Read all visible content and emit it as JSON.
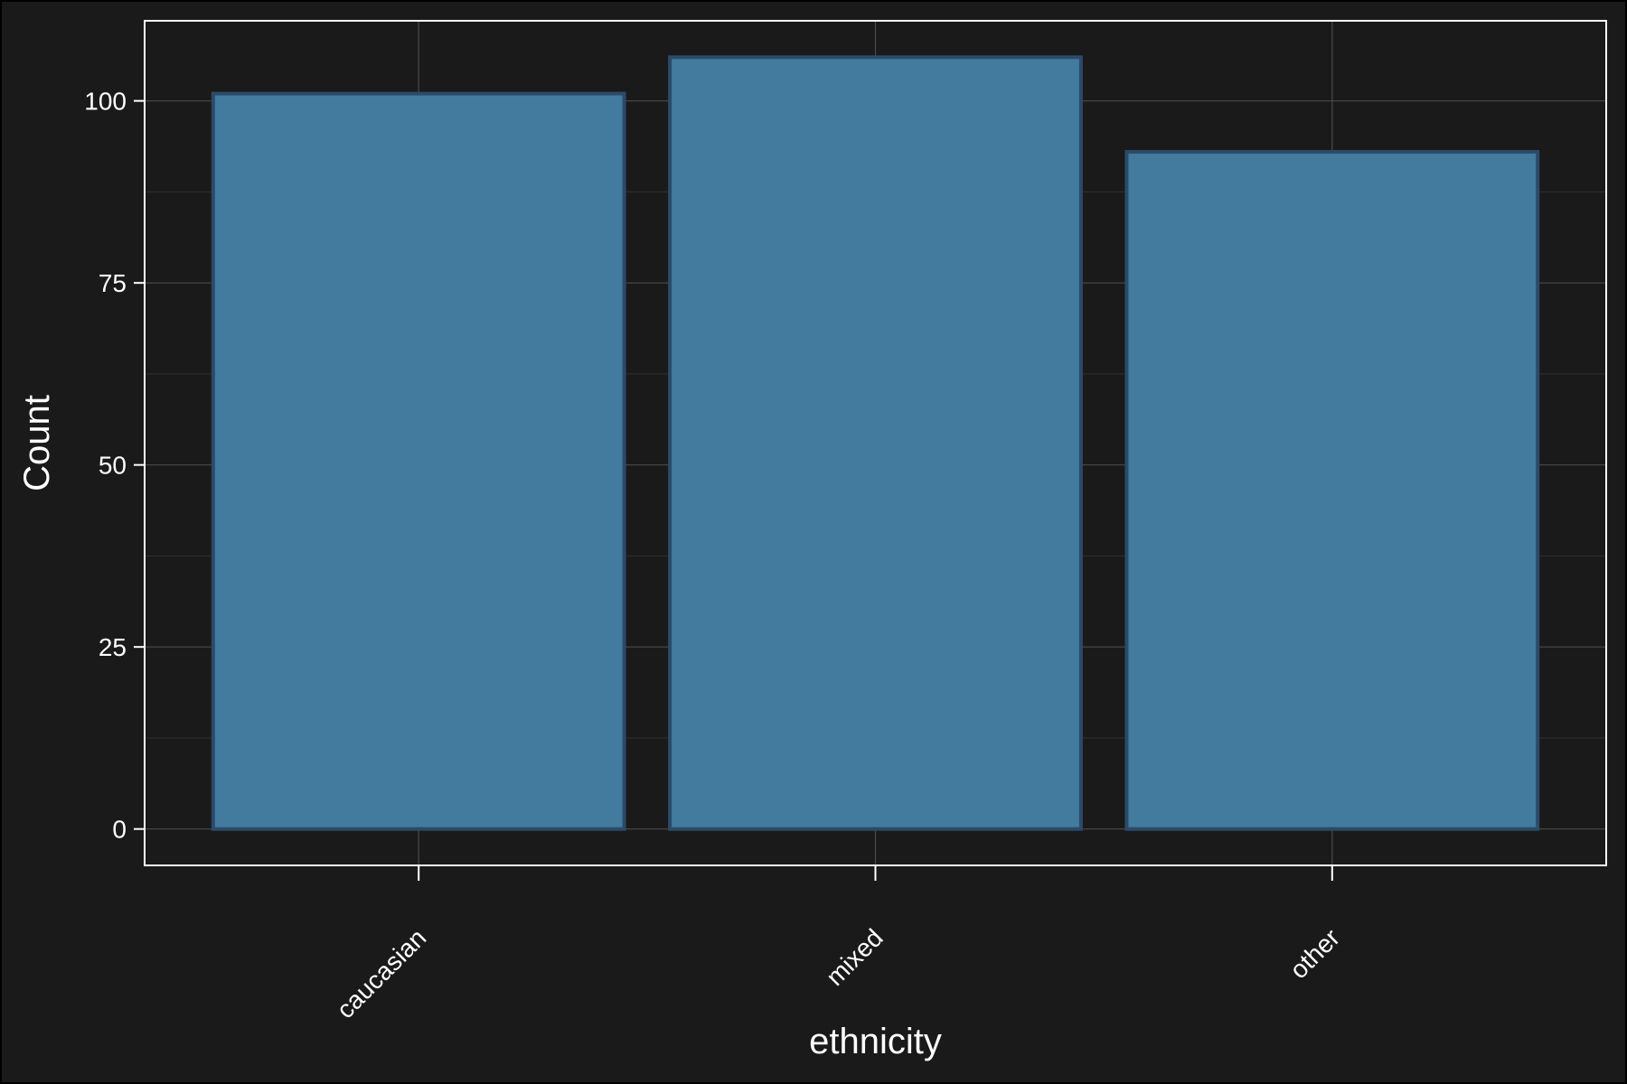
{
  "chart_data": {
    "type": "bar",
    "categories": [
      "caucasian",
      "mixed",
      "other"
    ],
    "values": [
      101,
      106,
      93
    ],
    "title": "",
    "xlabel": "ethnicity",
    "ylabel": "Count",
    "ylim": [
      -5,
      111
    ],
    "yticks": [
      0,
      25,
      50,
      75,
      100
    ],
    "grid": true,
    "colors": {
      "background": "#1a1a1a",
      "outer_border": "#000000",
      "bar_fill": "#427b9d",
      "bar_stroke": "#2c4a6a",
      "grid_major": "#4a4a4a",
      "grid_minor": "#303030",
      "panel_border": "#ffffff",
      "text": "#ffffff"
    }
  }
}
